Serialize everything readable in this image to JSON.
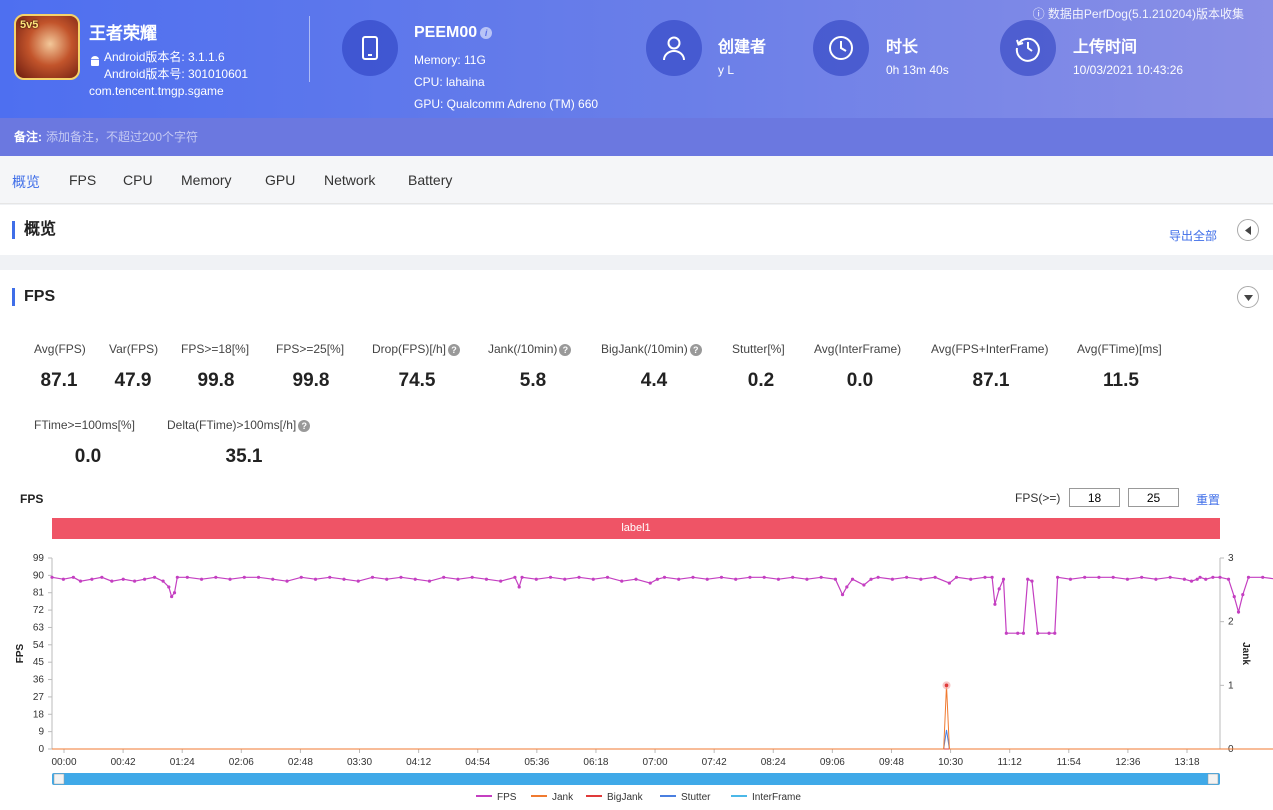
{
  "header": {
    "app_name": "王者荣耀",
    "app_badge": "5v5",
    "version_name": "Android版本名: 3.1.1.6",
    "version_code": "Android版本号: 301010601",
    "package": "com.tencent.tmgp.sgame",
    "device": {
      "name": "PEEM00",
      "memory": "Memory: 11G",
      "cpu": "CPU: lahaina",
      "gpu": "GPU: Qualcomm Adreno (TM) 660"
    },
    "creator_title": "创建者",
    "creator_value": "y L",
    "duration_title": "时长",
    "duration_value": "0h 13m 40s",
    "upload_title": "上传时间",
    "upload_value": "10/03/2021 10:43:26",
    "data_source": "数据由PerfDog(5.1.210204)版本收集",
    "icons": [
      "tablet-icon",
      "user-icon",
      "clock-icon",
      "history-icon",
      "android-icon",
      "info-icon"
    ]
  },
  "remark": {
    "label": "备注:",
    "placeholder": "添加备注，不超过200个字符"
  },
  "tabs": [
    "概览",
    "FPS",
    "CPU",
    "Memory",
    "GPU",
    "Network",
    "Battery"
  ],
  "overview": {
    "title": "概览",
    "export_label": "导出全部"
  },
  "fps_section": {
    "title": "FPS",
    "stats": [
      {
        "label": "Avg(FPS)",
        "value": "87.1"
      },
      {
        "label": "Var(FPS)",
        "value": "47.9"
      },
      {
        "label": "FPS>=18[%]",
        "value": "99.8"
      },
      {
        "label": "FPS>=25[%]",
        "value": "99.8"
      },
      {
        "label": "Drop(FPS)[/h]",
        "value": "74.5"
      },
      {
        "label": "Jank(/10min)",
        "value": "5.8"
      },
      {
        "label": "BigJank(/10min)",
        "value": "4.4"
      },
      {
        "label": "Stutter[%]",
        "value": "0.2"
      },
      {
        "label": "Avg(InterFrame)",
        "value": "0.0"
      },
      {
        "label": "Avg(FPS+InterFrame)",
        "value": "87.1"
      },
      {
        "label": "Avg(FTime)[ms]",
        "value": "11.5"
      },
      {
        "label": "FTime>=100ms[%]",
        "value": "0.0"
      },
      {
        "label": "Delta(FTime)>100ms[/h]",
        "value": "35.1"
      }
    ],
    "help_marker": "?",
    "chart_title": "FPS",
    "threshold_label": "FPS(>=)",
    "threshold_1": "18",
    "threshold_2": "25",
    "reset_label": "重置",
    "label_bar": "label1"
  },
  "chart_data": {
    "type": "line",
    "xlabel": "",
    "ylabel": "FPS",
    "y2label": "Jank",
    "ylim": [
      0,
      99
    ],
    "y2lim": [
      0,
      3
    ],
    "y_ticks": [
      0,
      9,
      18,
      27,
      36,
      45,
      54,
      63,
      72,
      81,
      90,
      99
    ],
    "y2_ticks": [
      0,
      1,
      2,
      3
    ],
    "x_ticks": [
      "00:00",
      "00:42",
      "01:24",
      "02:06",
      "02:48",
      "03:30",
      "04:12",
      "04:54",
      "05:36",
      "06:18",
      "07:00",
      "07:42",
      "08:24",
      "09:06",
      "09:48",
      "10:30",
      "11:12",
      "11:54",
      "12:36",
      "13:18"
    ],
    "x_range_seconds": [
      0,
      820
    ],
    "colors": {
      "FPS": "#c43fc1",
      "Jank": "#f07a30",
      "BigJank": "#e03a3a",
      "Stutter": "#4a7fe0",
      "InterFrame": "#4bb8e8"
    },
    "series": [
      {
        "name": "FPS",
        "points": [
          [
            0,
            89
          ],
          [
            8,
            88
          ],
          [
            15,
            89
          ],
          [
            20,
            87
          ],
          [
            28,
            88
          ],
          [
            35,
            89
          ],
          [
            42,
            87
          ],
          [
            50,
            88
          ],
          [
            58,
            87
          ],
          [
            65,
            88
          ],
          [
            72,
            89
          ],
          [
            78,
            87
          ],
          [
            82,
            84
          ],
          [
            84,
            79
          ],
          [
            86,
            81
          ],
          [
            88,
            89
          ],
          [
            95,
            89
          ],
          [
            105,
            88
          ],
          [
            115,
            89
          ],
          [
            125,
            88
          ],
          [
            135,
            89
          ],
          [
            145,
            89
          ],
          [
            155,
            88
          ],
          [
            165,
            87
          ],
          [
            175,
            89
          ],
          [
            185,
            88
          ],
          [
            195,
            89
          ],
          [
            205,
            88
          ],
          [
            215,
            87
          ],
          [
            225,
            89
          ],
          [
            235,
            88
          ],
          [
            245,
            89
          ],
          [
            255,
            88
          ],
          [
            265,
            87
          ],
          [
            275,
            89
          ],
          [
            285,
            88
          ],
          [
            295,
            89
          ],
          [
            305,
            88
          ],
          [
            315,
            87
          ],
          [
            325,
            89
          ],
          [
            328,
            84
          ],
          [
            330,
            89
          ],
          [
            340,
            88
          ],
          [
            350,
            89
          ],
          [
            360,
            88
          ],
          [
            370,
            89
          ],
          [
            380,
            88
          ],
          [
            390,
            89
          ],
          [
            400,
            87
          ],
          [
            410,
            88
          ],
          [
            420,
            86
          ],
          [
            425,
            88
          ],
          [
            430,
            89
          ],
          [
            440,
            88
          ],
          [
            450,
            89
          ],
          [
            460,
            88
          ],
          [
            470,
            89
          ],
          [
            480,
            88
          ],
          [
            490,
            89
          ],
          [
            500,
            89
          ],
          [
            510,
            88
          ],
          [
            520,
            89
          ],
          [
            530,
            88
          ],
          [
            540,
            89
          ],
          [
            550,
            88
          ],
          [
            555,
            80
          ],
          [
            558,
            84
          ],
          [
            562,
            88
          ],
          [
            570,
            85
          ],
          [
            575,
            88
          ],
          [
            580,
            89
          ],
          [
            590,
            88
          ],
          [
            600,
            89
          ],
          [
            610,
            88
          ],
          [
            620,
            89
          ],
          [
            630,
            86
          ],
          [
            635,
            89
          ],
          [
            645,
            88
          ],
          [
            655,
            89
          ],
          [
            660,
            89
          ],
          [
            662,
            75
          ],
          [
            665,
            83
          ],
          [
            668,
            88
          ],
          [
            670,
            60
          ],
          [
            678,
            60
          ],
          [
            682,
            60
          ],
          [
            685,
            88
          ],
          [
            688,
            87
          ],
          [
            692,
            60
          ],
          [
            700,
            60
          ],
          [
            704,
            60
          ],
          [
            706,
            89
          ],
          [
            715,
            88
          ],
          [
            725,
            89
          ],
          [
            735,
            89
          ],
          [
            745,
            89
          ],
          [
            755,
            88
          ],
          [
            765,
            89
          ],
          [
            775,
            88
          ],
          [
            785,
            89
          ],
          [
            795,
            88
          ],
          [
            800,
            87
          ],
          [
            804,
            88
          ],
          [
            806,
            89
          ],
          [
            810,
            88
          ],
          [
            815,
            89
          ],
          [
            820,
            89
          ],
          [
            826,
            88
          ],
          [
            830,
            79
          ],
          [
            833,
            71
          ],
          [
            836,
            80
          ],
          [
            840,
            89
          ],
          [
            850,
            89
          ],
          [
            860,
            88
          ],
          [
            870,
            89
          ],
          [
            880,
            88
          ],
          [
            890,
            89
          ],
          [
            900,
            88
          ],
          [
            910,
            89
          ],
          [
            920,
            88
          ],
          [
            926,
            84
          ],
          [
            930,
            70
          ],
          [
            932,
            80
          ],
          [
            935,
            89
          ],
          [
            945,
            88
          ],
          [
            955,
            89
          ],
          [
            965,
            88
          ],
          [
            975,
            89
          ],
          [
            985,
            88
          ],
          [
            995,
            89
          ],
          [
            1005,
            88
          ],
          [
            1015,
            89
          ],
          [
            1025,
            88
          ],
          [
            1035,
            89
          ],
          [
            1045,
            88
          ],
          [
            1055,
            89
          ],
          [
            1065,
            88
          ],
          [
            1075,
            89
          ],
          [
            1085,
            87
          ],
          [
            1090,
            80
          ],
          [
            1093,
            87
          ],
          [
            1100,
            88
          ],
          [
            1110,
            85
          ],
          [
            1118,
            89
          ],
          [
            1125,
            88
          ],
          [
            1130,
            60
          ],
          [
            1132,
            89
          ],
          [
            1136,
            90
          ],
          [
            1138,
            20
          ],
          [
            1140,
            70
          ],
          [
            1142,
            85
          ],
          [
            1144,
            60
          ],
          [
            1146,
            15
          ],
          [
            1148,
            89
          ],
          [
            1155,
            89
          ],
          [
            1165,
            89
          ]
        ]
      },
      {
        "name": "Jank",
        "points": [
          [
            0,
            0
          ],
          [
            626,
            0
          ],
          [
            628,
            1
          ],
          [
            630,
            0
          ],
          [
            1130,
            0
          ],
          [
            1132,
            1
          ],
          [
            1134,
            0
          ],
          [
            1138,
            1
          ],
          [
            1140,
            2
          ],
          [
            1142,
            1
          ],
          [
            1144,
            2
          ],
          [
            1146,
            1
          ],
          [
            1148,
            1
          ],
          [
            1150,
            0
          ],
          [
            1165,
            0
          ]
        ]
      },
      {
        "name": "BigJank",
        "points": [
          [
            0,
            0
          ],
          [
            1130,
            0
          ],
          [
            1132,
            1
          ],
          [
            1134,
            0
          ],
          [
            1138,
            1
          ],
          [
            1140,
            2
          ],
          [
            1142,
            1
          ],
          [
            1144,
            1
          ],
          [
            1146,
            1
          ],
          [
            1148,
            1
          ],
          [
            1150,
            0
          ],
          [
            1165,
            0
          ]
        ]
      },
      {
        "name": "Stutter",
        "points": [
          [
            0,
            0
          ],
          [
            626,
            0
          ],
          [
            628,
            0.3
          ],
          [
            630,
            0
          ],
          [
            1130,
            0
          ],
          [
            1132,
            0.6
          ],
          [
            1134,
            0
          ],
          [
            1138,
            0.7
          ],
          [
            1140,
            0.2
          ],
          [
            1142,
            0.8
          ],
          [
            1144,
            0.3
          ],
          [
            1146,
            0.9
          ],
          [
            1148,
            0.4
          ],
          [
            1150,
            0
          ],
          [
            1165,
            0
          ]
        ]
      },
      {
        "name": "InterFrame",
        "points": [
          [
            0,
            0
          ],
          [
            1165,
            0
          ]
        ]
      }
    ],
    "legend": [
      "FPS",
      "Jank",
      "BigJank",
      "Stutter",
      "InterFrame"
    ]
  }
}
